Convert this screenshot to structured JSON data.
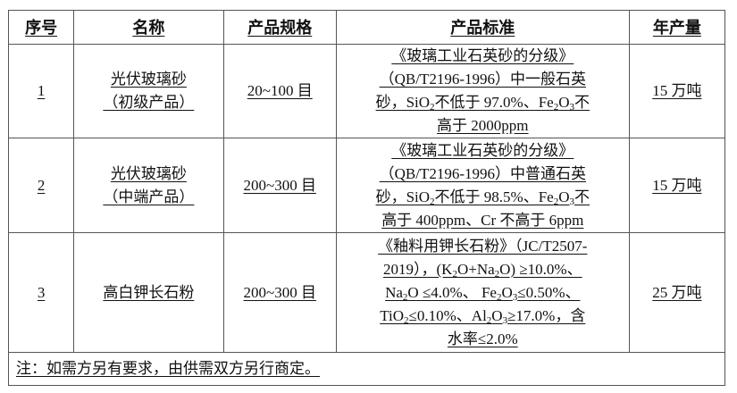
{
  "headers": [
    "序号",
    "名称",
    "产品规格",
    "产品标准",
    "年产量"
  ],
  "rows": [
    {
      "no": "1",
      "name": [
        "光伏玻璃砂",
        "（初级产品）"
      ],
      "spec": "20~100 目",
      "standard": [
        [
          {
            "t": "《玻璃工业石英砂的分级》"
          }
        ],
        [
          {
            "t": "（QB/T2196-1996）中一般石英"
          }
        ],
        [
          {
            "t": "砂，SiO"
          },
          {
            "t": "2",
            "sub": true
          },
          {
            "t": "不低于 97.0%、Fe"
          },
          {
            "t": "2",
            "sub": true
          },
          {
            "t": "O"
          },
          {
            "t": "3",
            "sub": true
          },
          {
            "t": "不"
          }
        ],
        [
          {
            "t": "高于 2000ppm"
          }
        ]
      ],
      "output": "15 万吨"
    },
    {
      "no": "2",
      "name": [
        "光伏玻璃砂",
        "（中端产品）"
      ],
      "spec": "200~300 目",
      "standard": [
        [
          {
            "t": "《玻璃工业石英砂的分级》"
          }
        ],
        [
          {
            "t": "（QB/T2196-1996）中普通石英"
          }
        ],
        [
          {
            "t": "砂，SiO"
          },
          {
            "t": "2",
            "sub": true
          },
          {
            "t": "不低于 98.5%、Fe"
          },
          {
            "t": "2",
            "sub": true
          },
          {
            "t": "O"
          },
          {
            "t": "3",
            "sub": true
          },
          {
            "t": "不"
          }
        ],
        [
          {
            "t": "高于 400ppm、Cr 不高于 6ppm"
          }
        ]
      ],
      "output": "15 万吨"
    },
    {
      "no": "3",
      "name": [
        "高白钾长石粉"
      ],
      "spec": "200~300 目",
      "standard": [
        [
          {
            "t": "《釉料用钾长石粉》（JC/T2507-"
          }
        ],
        [
          {
            "t": "2019），(K"
          },
          {
            "t": "2",
            "sub": true
          },
          {
            "t": "O+Na"
          },
          {
            "t": "2",
            "sub": true
          },
          {
            "t": "O) ≥10.0%、"
          }
        ],
        [
          {
            "t": "Na"
          },
          {
            "t": "2",
            "sub": true
          },
          {
            "t": "O ≤4.0%、 Fe"
          },
          {
            "t": "2",
            "sub": true
          },
          {
            "t": "O"
          },
          {
            "t": "3",
            "sub": true
          },
          {
            "t": "≤0.50%、"
          }
        ],
        [
          {
            "t": "TiO"
          },
          {
            "t": "2",
            "sub": true
          },
          {
            "t": "≤0.10%、Al"
          },
          {
            "t": "2",
            "sub": true
          },
          {
            "t": "O"
          },
          {
            "t": "3",
            "sub": true
          },
          {
            "t": "≥17.0%，含"
          }
        ],
        [
          {
            "t": "水率≤2.0%"
          }
        ]
      ],
      "output": "25 万吨"
    }
  ],
  "note": "注：如需方另有要求，由供需双方另行商定。"
}
